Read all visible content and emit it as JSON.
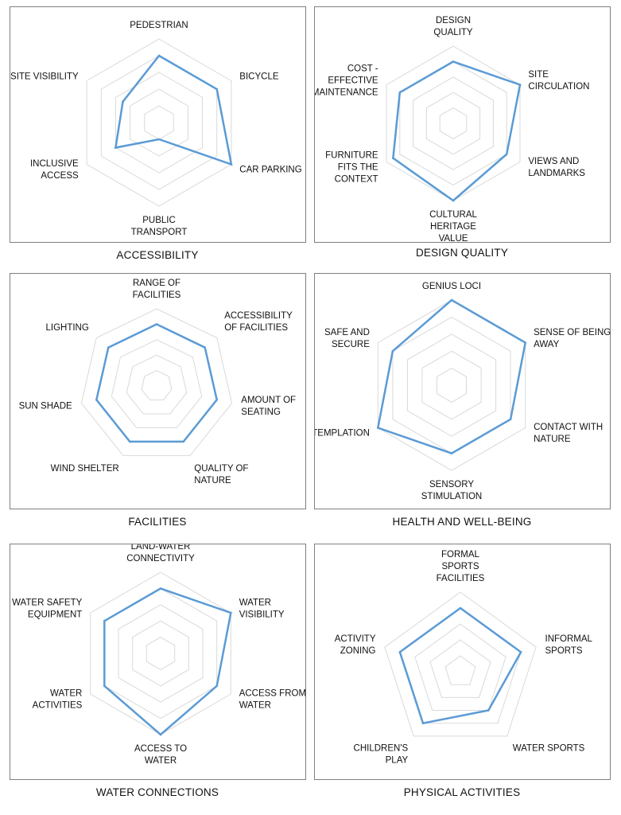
{
  "chart_data": [
    {
      "type": "radar",
      "title": "ACCESSIBILITY",
      "axes": [
        "PEDESTRIAN",
        "BICYCLE",
        "CAR PARKING",
        "PUBLIC TRANSPORT",
        "INCLUSIVE ACCESS",
        "SITE VISIBILITY"
      ],
      "levels": 5,
      "rmax": 5,
      "grid": true,
      "line_color": "#5B9BD5",
      "values": [
        4,
        4,
        5,
        1,
        3,
        2.5
      ]
    },
    {
      "type": "radar",
      "title": "DESIGN QUALITY",
      "axes": [
        "DESIGN QUALITY",
        "SITE CIRCULATION",
        "VIEWS AND LANDMARKS",
        "CULTURAL HERITAGE VALUE",
        "FURNITURE FITS THE CONTEXT",
        "COST - EFFECTIVE MAINTENANCE"
      ],
      "levels": 5,
      "rmax": 5,
      "grid": true,
      "line_color": "#5B9BD5",
      "values": [
        4,
        5,
        4,
        5,
        4.5,
        4
      ]
    },
    {
      "type": "radar",
      "title": "FACILITIES",
      "axes": [
        "RANGE OF FACILITIES",
        "ACCESSIBILITY OF FACILITIES",
        "AMOUNT OF SEATING",
        "QUALITY OF NATURE",
        "WIND SHELTER",
        "SUN SHADE",
        "LIGHTING"
      ],
      "levels": 5,
      "rmax": 5,
      "grid": true,
      "line_color": "#5B9BD5",
      "values": [
        4,
        4,
        4,
        4,
        4,
        4,
        4
      ]
    },
    {
      "type": "radar",
      "title": "HEALTH AND WELL-BEING",
      "axes": [
        "GENIUS LOCI",
        "SENSE OF BEING AWAY",
        "CONTACT WITH NATURE",
        "SENSORY STIMULATION",
        "CONTEMPLATION",
        "SAFE AND SECURE"
      ],
      "levels": 5,
      "rmax": 5,
      "grid": true,
      "line_color": "#5B9BD5",
      "values": [
        5,
        5,
        4,
        4,
        5,
        4
      ]
    },
    {
      "type": "radar",
      "title": "WATER CONNECTIONS",
      "axes": [
        "LAND-WATER CONNECTIVITY",
        "WATER VISIBILITY",
        "ACCESS FROM WATER",
        "ACCESS TO WATER",
        "WATER ACTIVITIES",
        "WATER SAFETY EQUIPMENT"
      ],
      "levels": 5,
      "rmax": 5,
      "grid": true,
      "line_color": "#5B9BD5",
      "values": [
        4,
        5,
        4,
        5,
        4,
        4
      ]
    },
    {
      "type": "radar",
      "title": "PHYSICAL ACTIVITIES",
      "axes": [
        "FORMAL SPORTS FACILITIES",
        "INFORMAL SPORTS",
        "WATER SPORTS",
        "CHILDREN'S PLAY",
        "ACTIVITY ZONING"
      ],
      "levels": 5,
      "rmax": 5,
      "grid": true,
      "line_color": "#5B9BD5",
      "values": [
        4,
        4,
        3,
        4,
        4
      ]
    }
  ]
}
